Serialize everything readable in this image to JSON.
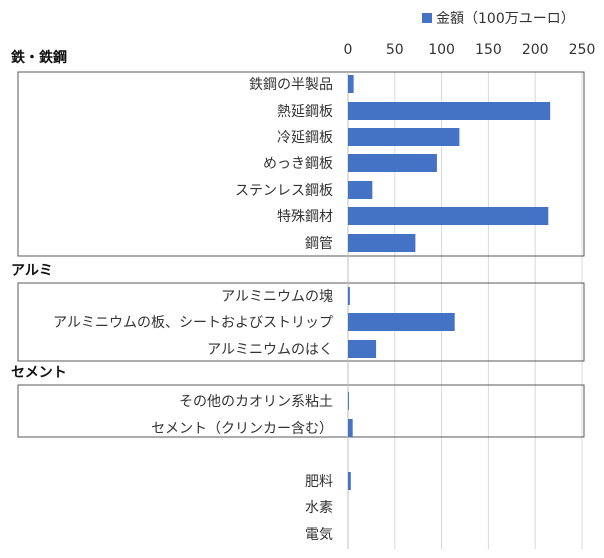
{
  "chart_data": {
    "type": "bar",
    "orientation": "horizontal",
    "title": "",
    "xlabel": "",
    "ylabel": "",
    "xlim": [
      0,
      250
    ],
    "ticks": [
      "0",
      "50",
      "100",
      "150",
      "200",
      "250"
    ],
    "grid": true,
    "legend": {
      "position": "top-right",
      "label": "金額（100万ユーロ）",
      "color": "#4472c4"
    },
    "bar_color": "#4472c4",
    "groups": [
      {
        "name": "鉄・鉄鋼",
        "items": [
          {
            "label": "鉄鋼の半製品",
            "value": 6
          },
          {
            "label": "熱延鋼板",
            "value": 216
          },
          {
            "label": "冷延鋼板",
            "value": 119
          },
          {
            "label": "めっき鋼板",
            "value": 95
          },
          {
            "label": "ステンレス鋼板",
            "value": 26
          },
          {
            "label": "特殊鋼材",
            "value": 214
          },
          {
            "label": "鋼管",
            "value": 72
          }
        ]
      },
      {
        "name": "アルミ",
        "items": [
          {
            "label": "アルミニウムの塊",
            "value": 2
          },
          {
            "label": "アルミニウムの板、シートおよびストリップ",
            "value": 114
          },
          {
            "label": "アルミニウムのはく",
            "value": 30
          }
        ]
      },
      {
        "name": "セメント",
        "items": [
          {
            "label": "その他のカオリン系粘土",
            "value": 1
          },
          {
            "label": "セメント（クリンカー含む）",
            "value": 5
          }
        ]
      },
      {
        "name": "",
        "items": [
          {
            "label": "肥料",
            "value": 3
          },
          {
            "label": "水素",
            "value": 0
          },
          {
            "label": "電気",
            "value": 0
          }
        ]
      }
    ]
  }
}
